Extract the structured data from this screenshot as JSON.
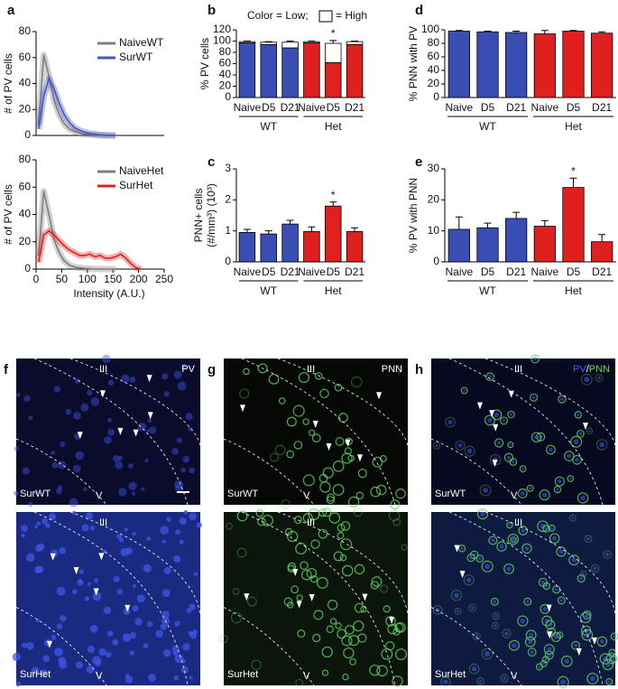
{
  "chart_data": [
    {
      "label": "a",
      "type": "line",
      "ylabel": "# of PV cells",
      "x": [
        5,
        15,
        25,
        35,
        45,
        55,
        65,
        75,
        85,
        95,
        105,
        115,
        125,
        135,
        145,
        155,
        165,
        175,
        185,
        195,
        205
      ],
      "series": [
        {
          "name": "NaiveWT",
          "color": "#7f7f7f",
          "values": [
            8,
            62,
            46,
            27,
            16,
            9,
            5,
            3,
            2,
            1,
            0.6,
            0.4,
            0.2,
            0.1,
            0,
            0,
            null,
            null,
            null,
            null,
            null
          ]
        },
        {
          "name": "SurWT",
          "color": "#4455bb",
          "values": [
            5,
            30,
            44,
            36,
            25,
            16,
            10,
            6,
            4,
            2.5,
            1.5,
            1,
            0.5,
            0.2,
            0,
            0,
            null,
            null,
            null,
            null,
            null
          ]
        }
      ],
      "xlim": [
        0,
        250
      ],
      "ylim": [
        0,
        80
      ],
      "yticks": [
        0,
        20,
        40,
        60,
        80
      ]
    },
    {
      "type": "line",
      "ylabel": "# of PV cells",
      "xlabel": "Intensity (A.U.)",
      "x": [
        5,
        15,
        25,
        35,
        45,
        55,
        65,
        75,
        85,
        95,
        105,
        115,
        125,
        135,
        145,
        155,
        165,
        175,
        185,
        195,
        205
      ],
      "series": [
        {
          "name": "NaiveHet",
          "color": "#7f7f7f",
          "values": [
            10,
            57,
            40,
            22,
            12,
            6,
            3,
            1.5,
            1,
            0.5,
            0.3,
            0.1,
            0,
            0,
            0,
            0,
            null,
            null,
            null,
            null,
            null
          ]
        },
        {
          "name": "SurHet",
          "color": "#dd2222",
          "values": [
            5,
            25,
            28,
            25,
            21,
            17,
            14,
            12,
            10,
            10,
            11,
            9,
            10,
            8,
            8,
            9,
            11,
            8,
            4,
            1,
            0
          ]
        }
      ],
      "xlim": [
        0,
        250
      ],
      "xticks": [
        0,
        50,
        100,
        150,
        200,
        250
      ],
      "ylim": [
        0,
        80
      ],
      "yticks": [
        0,
        20,
        40,
        60,
        80
      ]
    },
    {
      "label": "b",
      "type": "stacked_bar",
      "ylabel": [
        "% PV cells"
      ],
      "categories": [
        "Naive",
        "D5",
        "D21",
        "Naive",
        "D5",
        "D21"
      ],
      "groups": [
        "WT",
        "Het"
      ],
      "series": [
        {
          "name": "Color = Low;",
          "colors": [
            "#3a4db2",
            "#3a4db2",
            "#3a4db2",
            "#e0201f",
            "#e0201f",
            "#e0201f"
          ],
          "values": [
            97,
            94,
            88,
            97,
            62,
            94
          ],
          "errors": [
            1,
            1,
            2,
            1,
            5,
            1
          ]
        },
        {
          "name": "= High",
          "color": "#ffffff",
          "values": [
            2,
            4,
            10,
            2,
            34,
            5
          ],
          "errors": [
            1,
            1,
            2,
            1,
            5,
            1
          ]
        }
      ],
      "significance": [
        null,
        null,
        null,
        null,
        "*",
        null
      ],
      "ylim": [
        0,
        120
      ],
      "yticks": [
        0,
        20,
        40,
        60,
        80,
        100,
        120
      ]
    },
    {
      "label": "c",
      "type": "bar",
      "ylabel": [
        "PNN+ cells",
        "(#/mm³) (10³)"
      ],
      "categories": [
        "Naive",
        "D5",
        "D21",
        "Naive",
        "D5",
        "D21"
      ],
      "groups": [
        "WT",
        "Het"
      ],
      "colors": [
        "#3a4db2",
        "#3a4db2",
        "#3a4db2",
        "#e0201f",
        "#e0201f",
        "#e0201f"
      ],
      "values": [
        0.95,
        0.9,
        1.22,
        0.98,
        1.8,
        0.98
      ],
      "errors": [
        0.1,
        0.1,
        0.12,
        0.15,
        0.13,
        0.12
      ],
      "significance": [
        null,
        null,
        null,
        null,
        "*",
        null
      ],
      "ylim": [
        0,
        3
      ],
      "yticks": [
        0,
        1,
        2,
        3
      ]
    },
    {
      "label": "d",
      "type": "bar",
      "ylabel": [
        "% PNN with PV"
      ],
      "categories": [
        "Naive",
        "D5",
        "D21",
        "Naive",
        "D5",
        "D21"
      ],
      "groups": [
        "WT",
        "Het"
      ],
      "colors": [
        "#3a4db2",
        "#3a4db2",
        "#3a4db2",
        "#e0201f",
        "#e0201f",
        "#e0201f"
      ],
      "values": [
        98,
        97,
        96,
        94,
        98,
        95
      ],
      "errors": [
        1,
        1,
        2,
        5,
        1,
        2
      ],
      "ylim": [
        0,
        100
      ],
      "yticks": [
        0,
        20,
        40,
        60,
        80,
        100
      ]
    },
    {
      "label": "e",
      "type": "bar",
      "ylabel": [
        "% PV with PNN"
      ],
      "categories": [
        "Naive",
        "D5",
        "D21",
        "Naive",
        "D5",
        "D21"
      ],
      "groups": [
        "WT",
        "Het"
      ],
      "colors": [
        "#3a4db2",
        "#3a4db2",
        "#3a4db2",
        "#e0201f",
        "#e0201f",
        "#e0201f"
      ],
      "values": [
        10.5,
        11,
        14,
        11.5,
        24,
        6.5
      ],
      "errors": [
        4,
        1.5,
        2,
        1.8,
        3,
        2.3
      ],
      "significance": [
        null,
        null,
        null,
        null,
        "*",
        null
      ],
      "ylim": [
        0,
        30
      ],
      "yticks": [
        0,
        10,
        20,
        30
      ]
    }
  ],
  "images": [
    {
      "label": "f",
      "rows": [
        {
          "layer": "III",
          "stain": [
            "PV"
          ],
          "animal": "SurWT",
          "region": "V"
        },
        {
          "layer": "III",
          "animal": "SurHet",
          "region": "V"
        }
      ]
    },
    {
      "label": "g",
      "rows": [
        {
          "layer": "III",
          "stain": [
            "PNN"
          ],
          "animal": "SurWT",
          "region": "V"
        },
        {
          "layer": "III",
          "animal": "SurHet",
          "region": "V"
        }
      ]
    },
    {
      "label": "h",
      "rows": [
        {
          "layer": "III",
          "stain": [
            "PV",
            "/",
            "PNN"
          ],
          "animal": "SurWT",
          "region": "V"
        },
        {
          "layer": "III",
          "animal": "SurHet",
          "region": "V"
        }
      ]
    }
  ]
}
